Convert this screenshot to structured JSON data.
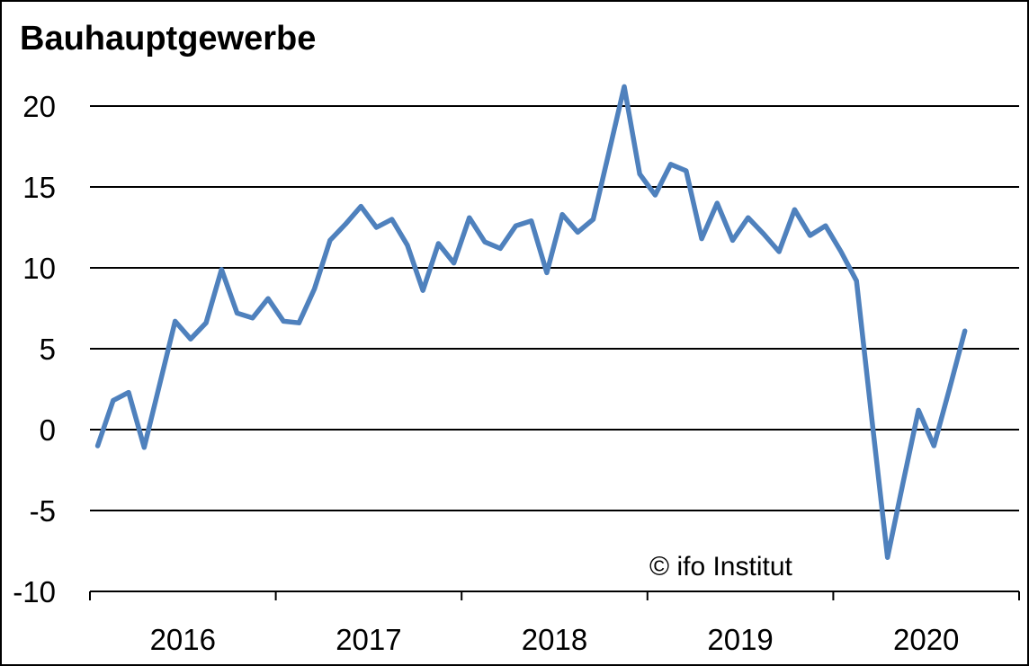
{
  "title": "Bauhauptgewerbe",
  "watermark": "© ifo Institut",
  "colors": {
    "line": "#4F81BD",
    "grid": "#000000",
    "text": "#000000",
    "background": "#FFFFFF",
    "frame": "#000000"
  },
  "y_axis": {
    "tick_labels": [
      "20",
      "15",
      "10",
      "5",
      "0",
      "-5",
      "-10"
    ]
  },
  "x_axis": {
    "tick_labels": [
      "2016",
      "2017",
      "2018",
      "2019",
      "2020"
    ]
  },
  "chart_data": {
    "type": "line",
    "title": "Bauhauptgewerbe",
    "series_name": "Bauhauptgewerbe",
    "frequency": "monthly",
    "legend": "none",
    "grid": "horizontal-only",
    "annotations": [
      "© ifo Institut"
    ],
    "ylim": [
      -10,
      22.4
    ],
    "y_ticks": [
      20,
      15,
      10,
      5,
      0,
      -5,
      -10
    ],
    "x_tick_years": [
      "2016",
      "2017",
      "2018",
      "2019",
      "2020"
    ],
    "x": [
      "2016-01",
      "2016-02",
      "2016-03",
      "2016-04",
      "2016-05",
      "2016-06",
      "2016-07",
      "2016-08",
      "2016-09",
      "2016-10",
      "2016-11",
      "2016-12",
      "2017-01",
      "2017-02",
      "2017-03",
      "2017-04",
      "2017-05",
      "2017-06",
      "2017-07",
      "2017-08",
      "2017-09",
      "2017-10",
      "2017-11",
      "2017-12",
      "2018-01",
      "2018-02",
      "2018-03",
      "2018-04",
      "2018-05",
      "2018-06",
      "2018-07",
      "2018-08",
      "2018-09",
      "2018-10",
      "2018-11",
      "2018-12",
      "2019-01",
      "2019-02",
      "2019-03",
      "2019-04",
      "2019-05",
      "2019-06",
      "2019-07",
      "2019-08",
      "2019-09",
      "2019-10",
      "2019-11",
      "2019-12",
      "2020-01",
      "2020-02",
      "2020-03",
      "2020-04",
      "2020-05",
      "2020-06",
      "2020-07",
      "2020-08",
      "2020-09"
    ],
    "values": [
      -1.0,
      1.8,
      2.3,
      -1.1,
      2.8,
      6.7,
      5.6,
      6.6,
      9.9,
      7.2,
      6.9,
      8.1,
      6.7,
      6.6,
      8.7,
      11.7,
      12.7,
      13.8,
      12.5,
      13.0,
      11.4,
      8.6,
      11.5,
      10.3,
      13.1,
      11.6,
      11.2,
      12.6,
      12.9,
      9.7,
      13.3,
      12.2,
      13.0,
      17.1,
      21.2,
      15.8,
      14.5,
      16.4,
      16.0,
      11.8,
      14.0,
      11.7,
      13.1,
      12.1,
      11.0,
      13.6,
      12.0,
      12.6,
      11.0,
      9.2,
      0.6,
      -7.9,
      -3.3,
      1.2,
      -1.0,
      2.5,
      6.1
    ]
  }
}
